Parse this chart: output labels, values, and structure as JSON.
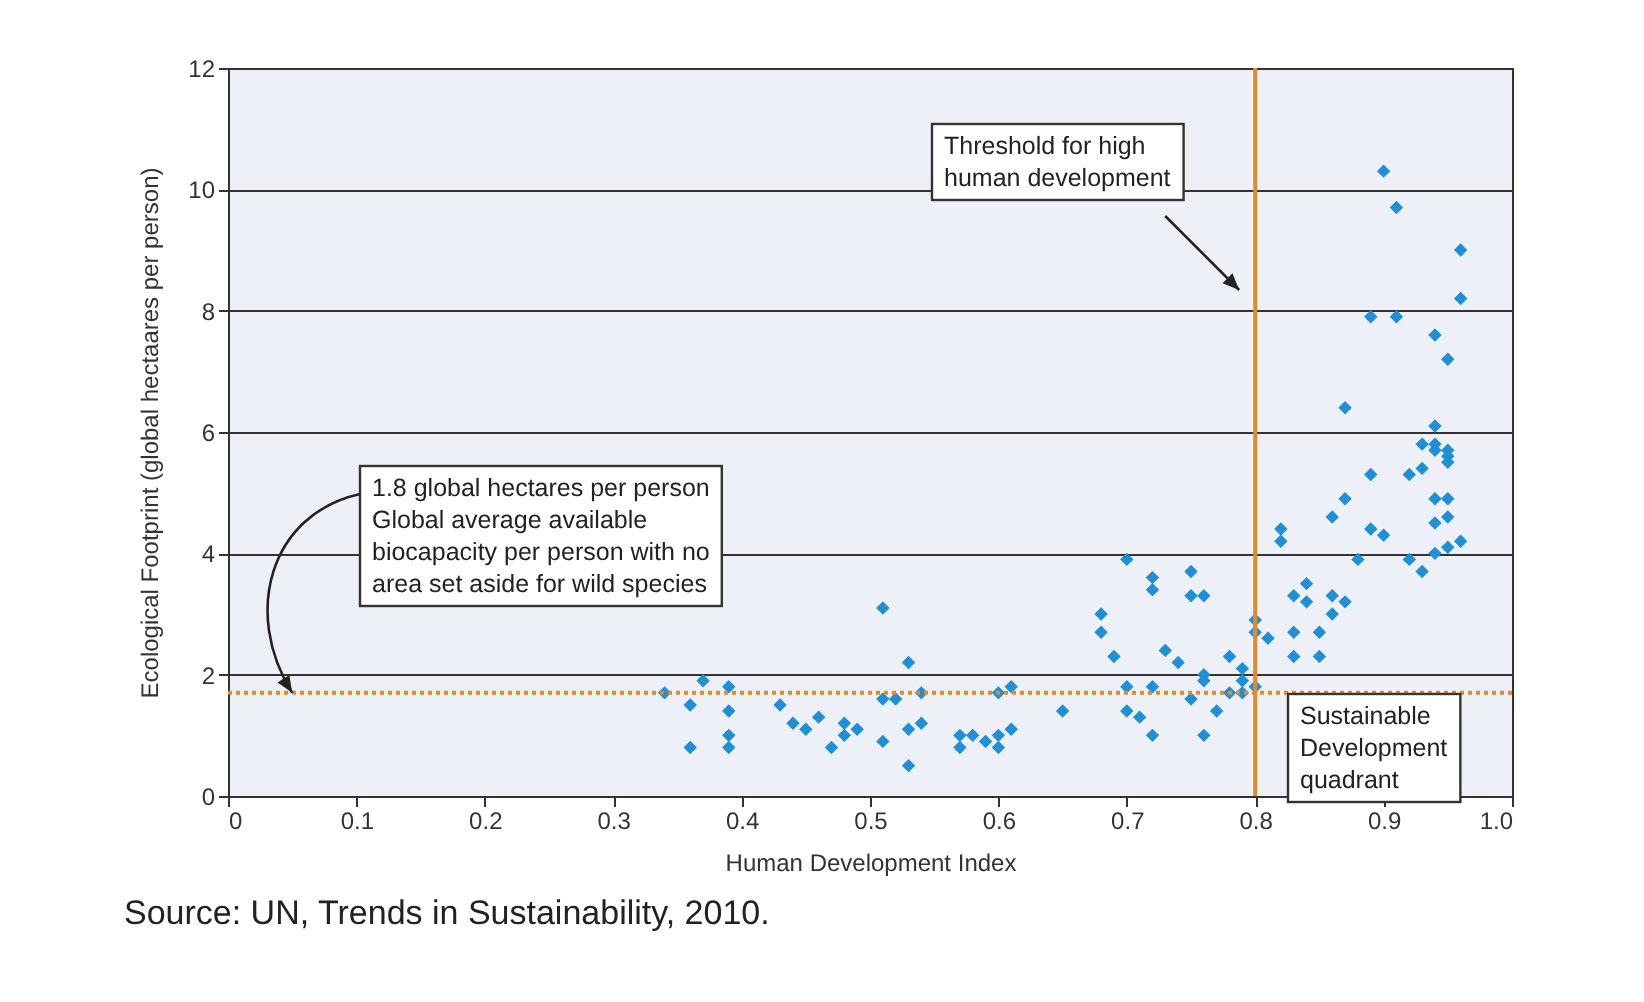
{
  "chart_data": {
    "type": "scatter",
    "xlabel": "Human Development Index",
    "ylabel": "Ecological Footprint (global hectaares per person)",
    "xlim": [
      0,
      1
    ],
    "xticks": [
      0,
      0.1,
      0.2,
      0.3,
      0.4,
      0.5,
      0.6,
      0.7,
      0.8,
      0.9,
      {
        "value": 1,
        "label": "1.0"
      }
    ],
    "ylim": [
      0,
      12
    ],
    "yticks": [
      0,
      2,
      4,
      6,
      8,
      10,
      12
    ],
    "grid": "y",
    "marker": "diamond",
    "series": [
      {
        "color": "#1f8fd6",
        "x": [
          0.34,
          0.37,
          0.39,
          0.36,
          0.39,
          0.39,
          0.36,
          0.39,
          0.43,
          0.44,
          0.45,
          0.46,
          0.47,
          0.48,
          0.48,
          0.49,
          0.51,
          0.52,
          0.54,
          0.51,
          0.53,
          0.54,
          0.53,
          0.51,
          0.53,
          0.57,
          0.57,
          0.58,
          0.59,
          0.6,
          0.6,
          0.61,
          0.61,
          0.6,
          0.68,
          0.68,
          0.69,
          0.7,
          0.7,
          0.71,
          0.72,
          0.72,
          0.73,
          0.74,
          0.75,
          0.75,
          0.76,
          0.76,
          0.76,
          0.77,
          0.78,
          0.78,
          0.79,
          0.79,
          0.79,
          0.8,
          0.8,
          0.8,
          0.81,
          0.82,
          0.76,
          0.75,
          0.72,
          0.72,
          0.7,
          0.65,
          0.83,
          0.83,
          0.84,
          0.86,
          0.87,
          0.86,
          0.83,
          0.85,
          0.84,
          0.85,
          0.82,
          0.86,
          0.87,
          0.87,
          0.89,
          0.88,
          0.89,
          0.9,
          0.91,
          0.89,
          0.9,
          0.92,
          0.93,
          0.93,
          0.94,
          0.94,
          0.94,
          0.95,
          0.95,
          0.95,
          0.94,
          0.94,
          0.95,
          0.95,
          0.96,
          0.95,
          0.94,
          0.92,
          0.93,
          0.96,
          0.91,
          0.94,
          0.95,
          0.96
        ],
        "values": [
          1.7,
          1.9,
          1.8,
          1.5,
          1.4,
          1.0,
          0.8,
          0.8,
          1.5,
          1.2,
          1.1,
          1.3,
          0.8,
          1.2,
          1.0,
          1.1,
          1.6,
          1.6,
          1.7,
          0.9,
          1.1,
          1.2,
          0.5,
          3.1,
          2.2,
          0.8,
          1.0,
          1.0,
          0.9,
          1.0,
          0.8,
          1.1,
          1.8,
          1.7,
          3.0,
          2.7,
          2.3,
          1.8,
          1.4,
          1.3,
          1.8,
          1.0,
          2.4,
          2.2,
          3.7,
          1.6,
          1.0,
          1.9,
          2.0,
          1.4,
          1.7,
          2.3,
          1.7,
          2.1,
          1.9,
          1.8,
          2.7,
          2.9,
          2.6,
          4.2,
          3.3,
          3.3,
          3.6,
          3.4,
          3.9,
          1.4,
          3.3,
          2.7,
          3.5,
          3.3,
          3.2,
          3.0,
          2.3,
          2.7,
          3.2,
          2.3,
          4.4,
          4.6,
          4.9,
          6.4,
          4.4,
          3.9,
          5.3,
          10.3,
          9.7,
          7.9,
          4.3,
          3.9,
          3.7,
          5.4,
          6.1,
          5.7,
          5.8,
          5.6,
          5.7,
          5.5,
          4.9,
          4.0,
          4.9,
          4.6,
          4.2,
          4.1,
          4.5,
          5.3,
          5.8,
          8.2,
          7.9,
          7.6,
          7.2,
          9.0
        ]
      }
    ],
    "ref_lines": [
      {
        "axis": "x",
        "value": 0.8,
        "color": "#e08a2c",
        "line_style": "solid"
      },
      {
        "axis": "y",
        "value": 1.7,
        "color": "#e08a2c",
        "line_style": "dotted"
      }
    ],
    "annotations": [
      "Threshold for high\nhuman development",
      {
        "text": "1.8 global hectares per person\nGlobal average available\nbiocapacity per person with no\narea set aside for wild species",
        "x": 0.05,
        "y": 1.7
      },
      "Sustainable\nDevelopment\nquadrant",
      "Source: UN, Trends in Sustainability, 2010."
    ]
  }
}
